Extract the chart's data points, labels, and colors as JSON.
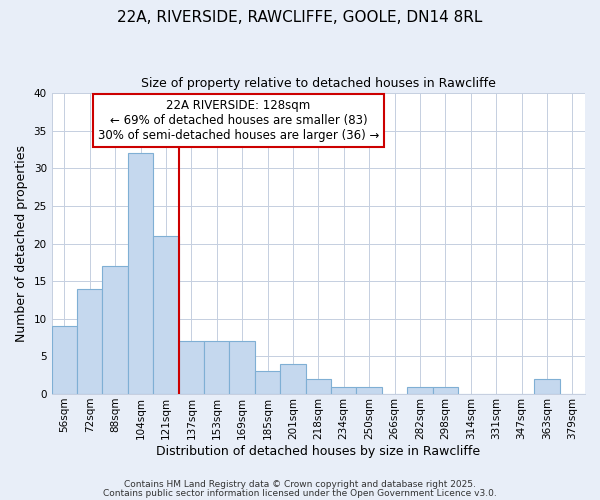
{
  "title": "22A, RIVERSIDE, RAWCLIFFE, GOOLE, DN14 8RL",
  "subtitle": "Size of property relative to detached houses in Rawcliffe",
  "xlabel": "Distribution of detached houses by size in Rawcliffe",
  "ylabel": "Number of detached properties",
  "bin_labels": [
    "56sqm",
    "72sqm",
    "88sqm",
    "104sqm",
    "121sqm",
    "137sqm",
    "153sqm",
    "169sqm",
    "185sqm",
    "201sqm",
    "218sqm",
    "234sqm",
    "250sqm",
    "266sqm",
    "282sqm",
    "298sqm",
    "314sqm",
    "331sqm",
    "347sqm",
    "363sqm",
    "379sqm"
  ],
  "bar_values": [
    9,
    14,
    17,
    32,
    21,
    7,
    7,
    7,
    3,
    4,
    2,
    1,
    1,
    0,
    1,
    1,
    0,
    0,
    0,
    2,
    0
  ],
  "bar_color": "#c5d8ee",
  "bar_edge_color": "#7fafd4",
  "vline_x": 4.5,
  "vline_color": "#cc0000",
  "ylim": [
    0,
    40
  ],
  "yticks": [
    0,
    5,
    10,
    15,
    20,
    25,
    30,
    35,
    40
  ],
  "annotation_title": "22A RIVERSIDE: 128sqm",
  "annotation_line1": "← 69% of detached houses are smaller (83)",
  "annotation_line2": "30% of semi-detached houses are larger (36) →",
  "bg_color": "#e8eef8",
  "plot_bg_color": "#ffffff",
  "footer1": "Contains HM Land Registry data © Crown copyright and database right 2025.",
  "footer2": "Contains public sector information licensed under the Open Government Licence v3.0.",
  "title_fontsize": 11,
  "subtitle_fontsize": 9,
  "ylabel_fontsize": 9,
  "xlabel_fontsize": 9,
  "tick_fontsize": 7.5,
  "footer_fontsize": 6.5,
  "ann_fontsize": 8.5
}
